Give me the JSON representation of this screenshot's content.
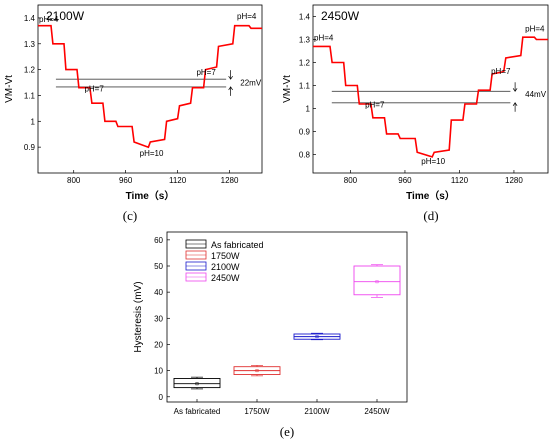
{
  "chart_data": [
    {
      "type": "line",
      "panel_title": "2100W",
      "caption": "(c)",
      "xlabel": "Time（s）",
      "ylabel": "VM-Vt",
      "xlim": [
        690,
        1380
      ],
      "ylim": [
        0.8,
        1.45
      ],
      "xticks": [
        800,
        960,
        1120,
        1280
      ],
      "yticks": [
        0.9,
        1.0,
        1.1,
        1.2,
        1.3,
        1.4
      ],
      "color": "#ff0000",
      "series": [
        {
          "x": [
            690,
            730,
            736,
            770,
            776,
            810,
            816,
            850,
            856,
            890,
            896,
            930,
            936,
            980,
            986,
            1030,
            1036,
            1080,
            1086,
            1120,
            1126,
            1160,
            1166,
            1200,
            1206,
            1240,
            1246,
            1290,
            1296,
            1340,
            1346,
            1380
          ],
          "y": [
            1.37,
            1.37,
            1.3,
            1.3,
            1.2,
            1.2,
            1.13,
            1.13,
            1.07,
            1.07,
            1.0,
            1.0,
            0.98,
            0.98,
            0.92,
            0.9,
            0.92,
            0.93,
            1.0,
            1.01,
            1.06,
            1.07,
            1.13,
            1.13,
            1.2,
            1.21,
            1.29,
            1.3,
            1.37,
            1.37,
            1.36,
            1.36
          ]
        }
      ],
      "hlines": [
        1.163,
        1.133
      ],
      "annotations": [
        {
          "text": "pH=4",
          "x": 690,
          "y": 1.385
        },
        {
          "text": "pH=7",
          "x": 830,
          "y": 1.115
        },
        {
          "text": "pH=10",
          "x": 1000,
          "y": 0.865
        },
        {
          "text": "pH=7",
          "x": 1175,
          "y": 1.18
        },
        {
          "text": "pH=4",
          "x": 1300,
          "y": 1.395
        },
        {
          "text": "22mV",
          "x": 1310,
          "y": 1.138
        }
      ]
    },
    {
      "type": "line",
      "panel_title": "2450W",
      "caption": "(d)",
      "xlabel": "Time（s）",
      "ylabel": "VM-Vt",
      "xlim": [
        690,
        1380
      ],
      "ylim": [
        0.72,
        1.45
      ],
      "xticks": [
        800,
        960,
        1120,
        1280
      ],
      "yticks": [
        0.8,
        0.9,
        1.0,
        1.1,
        1.2,
        1.3,
        1.4
      ],
      "color": "#ff0000",
      "series": [
        {
          "x": [
            690,
            740,
            746,
            780,
            786,
            820,
            826,
            860,
            866,
            900,
            906,
            940,
            946,
            990,
            996,
            1040,
            1046,
            1090,
            1096,
            1130,
            1136,
            1170,
            1176,
            1210,
            1216,
            1250,
            1256,
            1300,
            1306,
            1340,
            1346,
            1380
          ],
          "y": [
            1.27,
            1.27,
            1.2,
            1.2,
            1.1,
            1.1,
            1.02,
            1.02,
            0.96,
            0.96,
            0.89,
            0.89,
            0.87,
            0.87,
            0.81,
            0.79,
            0.81,
            0.82,
            0.95,
            0.95,
            1.02,
            1.02,
            1.08,
            1.08,
            1.15,
            1.16,
            1.22,
            1.23,
            1.31,
            1.31,
            1.3,
            1.3
          ]
        }
      ],
      "hlines": [
        1.075,
        1.025
      ],
      "annotations": [
        {
          "text": "pH=4",
          "x": 690,
          "y": 1.295
        },
        {
          "text": "pH=7",
          "x": 840,
          "y": 1.005
        },
        {
          "text": "pH=10",
          "x": 1005,
          "y": 0.76
        },
        {
          "text": "pH=7",
          "x": 1210,
          "y": 1.15
        },
        {
          "text": "pH=4",
          "x": 1310,
          "y": 1.335
        },
        {
          "text": "44mV",
          "x": 1310,
          "y": 1.05
        }
      ]
    },
    {
      "type": "box",
      "caption": "(e)",
      "xlabel": "",
      "ylabel": "Hysteresis (mV)",
      "ylim": [
        -2,
        63
      ],
      "yticks": [
        0,
        10,
        20,
        30,
        40,
        50,
        60
      ],
      "categories": [
        "As fabricated",
        "1750W",
        "2100W",
        "2450W"
      ],
      "legend": {
        "position": "top-left",
        "entries": [
          "As fabricated",
          "1750W",
          "2100W",
          "2450W"
        ]
      },
      "series": [
        {
          "name": "As fabricated",
          "color": "#000000",
          "min": 3,
          "q1": 3.5,
          "median": 5,
          "q3": 7,
          "max": 7.5,
          "mean": 5
        },
        {
          "name": "1750W",
          "color": "#e03030",
          "min": 8,
          "q1": 8.5,
          "median": 10,
          "q3": 11.5,
          "max": 12,
          "mean": 10
        },
        {
          "name": "2100W",
          "color": "#1a1acc",
          "min": 21.8,
          "q1": 22,
          "median": 23,
          "q3": 24,
          "max": 24.3,
          "mean": 23
        },
        {
          "name": "2450W",
          "color": "#ee44ee",
          "min": 38,
          "q1": 39,
          "median": 44,
          "q3": 50,
          "max": 50.5,
          "mean": 44
        }
      ]
    }
  ]
}
